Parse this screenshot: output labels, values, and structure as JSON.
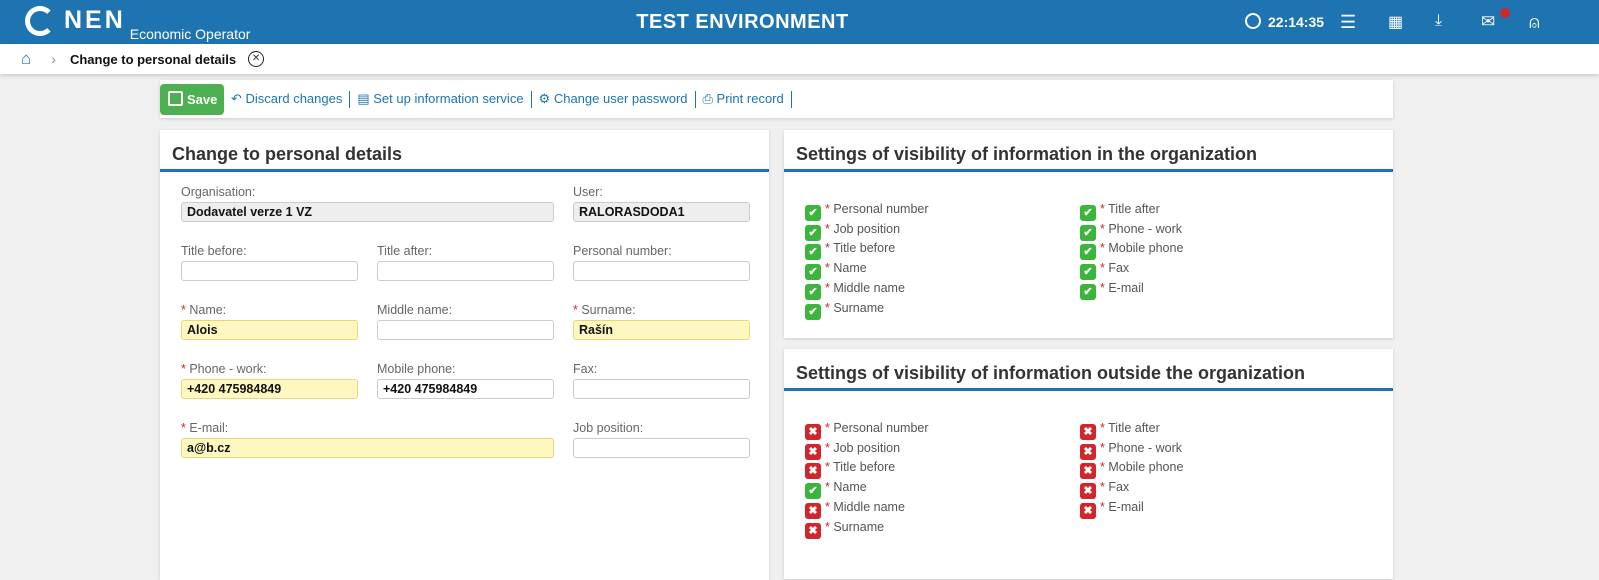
{
  "header": {
    "logo_text": "NEN",
    "subtitle": "Economic Operator",
    "environment": "TEST ENVIRONMENT",
    "time": "22:14:35",
    "has_notification": true,
    "accent": "#1d74b1"
  },
  "breadcrumb": {
    "current": "Change to personal details"
  },
  "toolbar": {
    "save": "Save",
    "discard": "Discard changes",
    "info_service": "Set up information service",
    "change_password": "Change user password",
    "print": "Print record"
  },
  "form": {
    "title": "Change to personal details",
    "fields": [
      {
        "label": "Organisation:",
        "value": "Dodavatel verze 1 VZ",
        "required": false,
        "readonly": true
      },
      {
        "label": "User:",
        "value": "RALORASDODA1",
        "required": false,
        "readonly": true
      },
      {
        "label": "Title before:",
        "value": "",
        "required": false
      },
      {
        "label": "Title after:",
        "value": "",
        "required": false
      },
      {
        "label": "Personal number:",
        "value": "",
        "required": false
      },
      {
        "label": "Name:",
        "value": "Alois",
        "required": true
      },
      {
        "label": "Middle name:",
        "value": "",
        "required": false
      },
      {
        "label": "Surname:",
        "value": "Rašín",
        "required": true
      },
      {
        "label": "Phone - work:",
        "value": "+420 475984849",
        "required": true
      },
      {
        "label": "Mobile phone:",
        "value": "+420 475984849",
        "required": false
      },
      {
        "label": "Fax:",
        "value": "",
        "required": false
      },
      {
        "label": "E-mail:",
        "value": "a@b.cz",
        "required": true
      },
      {
        "label": "Job position:",
        "value": "",
        "required": false
      }
    ]
  },
  "visibility_inside": {
    "title": "Settings of visibility of information in the organization",
    "items": [
      {
        "label": "Personal number",
        "checked": true
      },
      {
        "label": "Job position",
        "checked": true
      },
      {
        "label": "Title before",
        "checked": true
      },
      {
        "label": "Name",
        "checked": true
      },
      {
        "label": "Middle name",
        "checked": true
      },
      {
        "label": "Surname",
        "checked": true
      },
      {
        "label": "Title after",
        "checked": true
      },
      {
        "label": "Phone - work",
        "checked": true
      },
      {
        "label": "Mobile phone",
        "checked": true
      },
      {
        "label": "Fax",
        "checked": true
      },
      {
        "label": "E-mail",
        "checked": true
      }
    ]
  },
  "visibility_outside": {
    "title": "Settings of visibility of information outside the organization",
    "items": [
      {
        "label": "Personal number",
        "checked": false
      },
      {
        "label": "Job position",
        "checked": false
      },
      {
        "label": "Title before",
        "checked": false
      },
      {
        "label": "Name",
        "checked": true
      },
      {
        "label": "Middle name",
        "checked": false
      },
      {
        "label": "Surname",
        "checked": false
      },
      {
        "label": "Title after",
        "checked": false
      },
      {
        "label": "Phone - work",
        "checked": false
      },
      {
        "label": "Mobile phone",
        "checked": false
      },
      {
        "label": "Fax",
        "checked": false
      },
      {
        "label": "E-mail",
        "checked": false
      }
    ]
  }
}
